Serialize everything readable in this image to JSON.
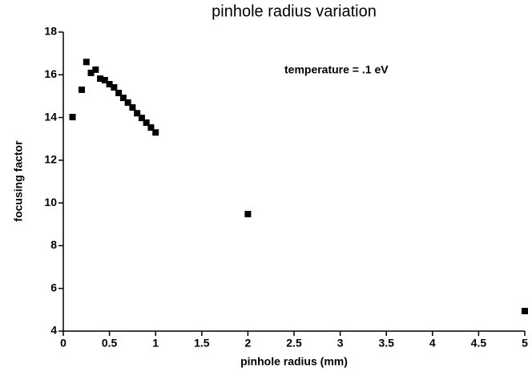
{
  "chart_data": {
    "type": "scatter",
    "title": "pinhole radius variation",
    "x_label": "pinhole radius (mm)",
    "y_label": "focusing factor",
    "annotation": "temperature = .1 eV",
    "series": [
      {
        "name": null,
        "color": "#000000",
        "x": [
          0.1,
          0.2,
          0.25,
          0.3,
          0.35,
          0.4,
          0.45,
          0.5,
          0.55,
          0.6,
          0.65,
          0.7,
          0.75,
          0.8,
          0.85,
          0.9,
          0.95,
          1.0,
          2,
          5
        ],
        "values": [
          14.02,
          15.3,
          16.6,
          16.09,
          16.24,
          15.82,
          15.75,
          15.56,
          15.41,
          15.15,
          14.92,
          14.7,
          14.47,
          14.2,
          13.98,
          13.76,
          13.53,
          13.3,
          9.48,
          4.94
        ]
      }
    ],
    "xlim": [
      0,
      5
    ],
    "xticks": [
      0,
      0.5,
      1,
      1.5,
      2,
      2.5,
      3,
      3.5,
      4,
      4.5,
      5
    ],
    "ylim": [
      4,
      18
    ],
    "yticks": [
      4,
      6,
      8,
      10,
      12,
      14,
      16,
      18
    ]
  }
}
